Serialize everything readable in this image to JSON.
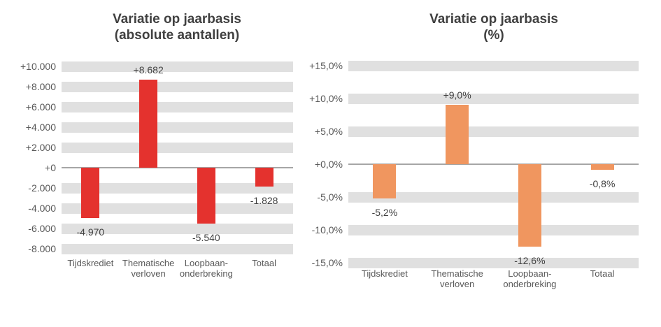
{
  "chart_data": [
    {
      "type": "bar",
      "title": "Variatie op jaarbasis (absolute aantallen)",
      "title_lines": [
        "Variatie op jaarbasis",
        "(absolute aantallen)"
      ],
      "categories": [
        "Tijdskrediet",
        "Thematische verloven",
        "Loopbaan-onderbreking",
        "Totaal"
      ],
      "category_lines": [
        [
          "Tijdskrediet"
        ],
        [
          "Thematische",
          "verloven"
        ],
        [
          "Loopbaan-",
          "onderbreking"
        ],
        [
          "Totaal"
        ]
      ],
      "values": [
        -4970,
        8682,
        -5540,
        -1828
      ],
      "data_labels": [
        "-4.970",
        "+8.682",
        "-5.540",
        "-1.828"
      ],
      "tick_values": [
        10000,
        8000,
        6000,
        4000,
        2000,
        0,
        -2000,
        -4000,
        -6000,
        -8000
      ],
      "tick_labels": [
        "+10.000",
        "+8.000",
        "+6.000",
        "+4.000",
        "+2.000",
        "+0",
        "-2.000",
        "-4.000",
        "-6.000",
        "-8.000"
      ],
      "ylim": [
        -8000,
        10000
      ],
      "xlabel": "",
      "ylabel": "",
      "legend": null,
      "grid": "horizontal-bands",
      "bar_color": "#e4322e",
      "grid_band_color": "#e0e0e0",
      "axis_line_color": "#a6a6a6"
    },
    {
      "type": "bar",
      "title": "Variatie op jaarbasis (%)",
      "title_lines": [
        "Variatie op jaarbasis",
        "(%)"
      ],
      "categories": [
        "Tijdskrediet",
        "Thematische verloven",
        "Loopbaan-onderbreking",
        "Totaal"
      ],
      "category_lines": [
        [
          "Tijdskrediet"
        ],
        [
          "Thematische",
          "verloven"
        ],
        [
          "Loopbaan-",
          "onderbreking"
        ],
        [
          "Totaal"
        ]
      ],
      "values": [
        -5.2,
        9.0,
        -12.6,
        -0.8
      ],
      "data_labels": [
        "-5,2%",
        "+9,0%",
        "-12,6%",
        "-0,8%"
      ],
      "tick_values": [
        15,
        10,
        5,
        0,
        -5,
        -10,
        -15
      ],
      "tick_labels": [
        "+15,0%",
        "+10,0%",
        "+5,0%",
        "+0,0%",
        "-5,0%",
        "-10,0%",
        "-15,0%"
      ],
      "ylim": [
        -15,
        15
      ],
      "xlabel": "",
      "ylabel": "",
      "legend": null,
      "grid": "horizontal-bands",
      "bar_color": "#f0965f",
      "grid_band_color": "#e0e0e0",
      "axis_line_color": "#a6a6a6"
    }
  ]
}
